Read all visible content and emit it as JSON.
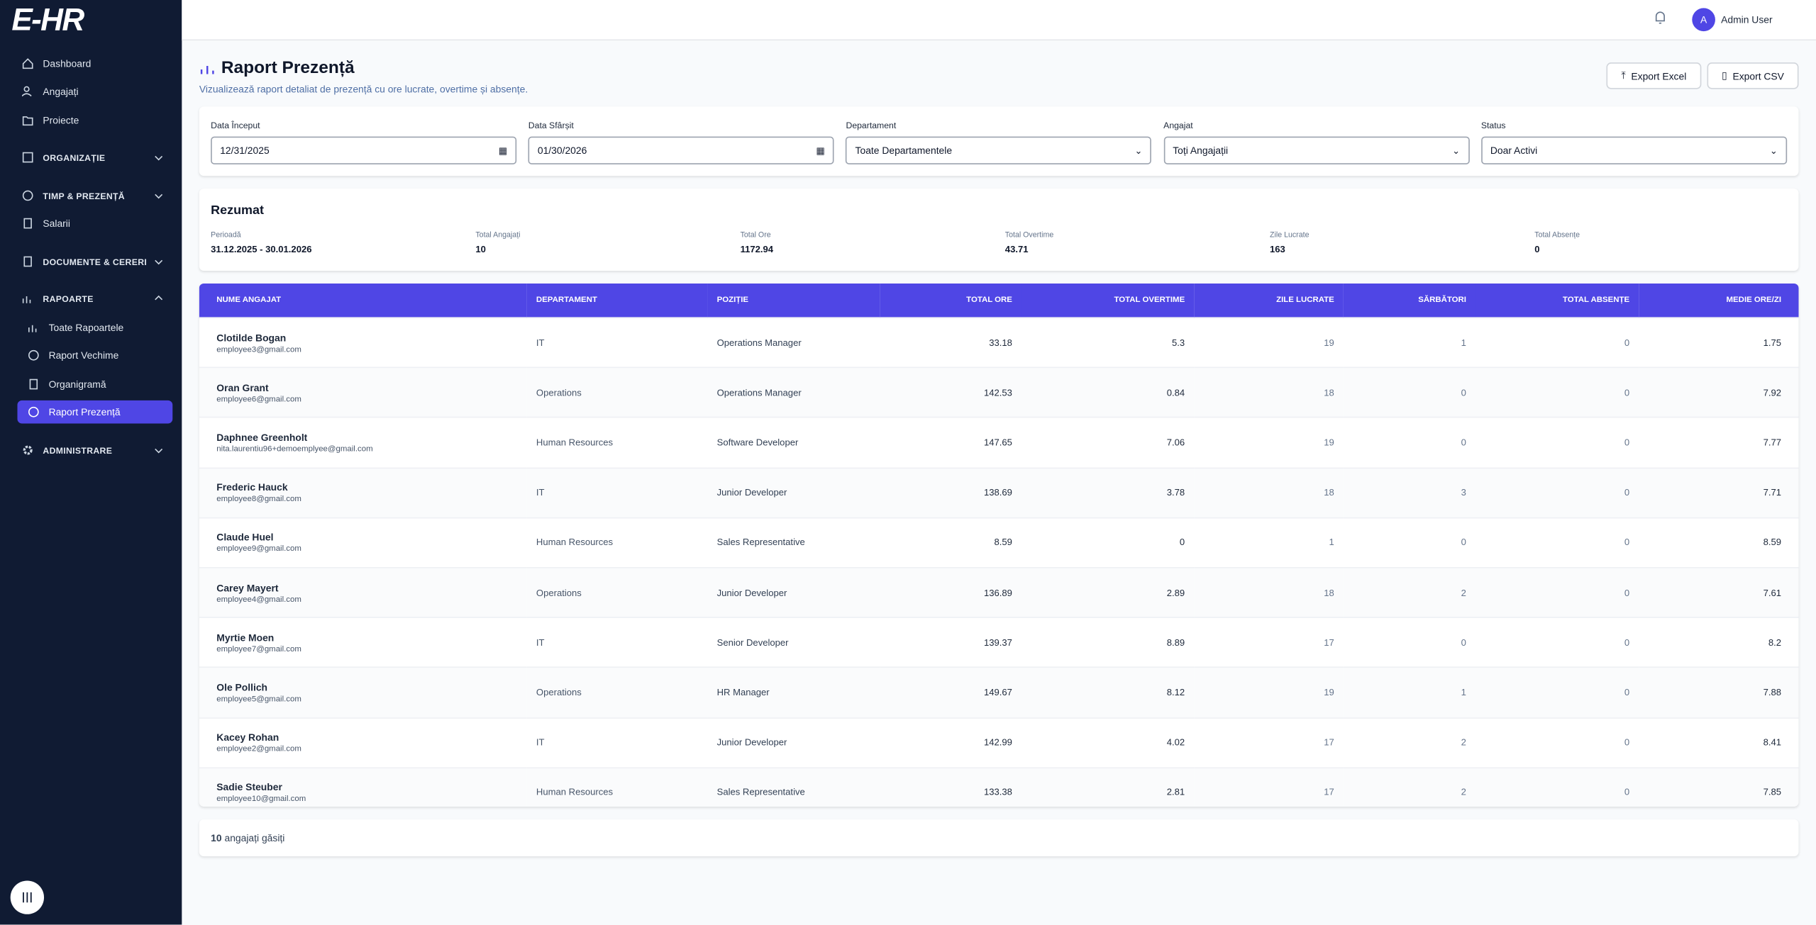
{
  "logo": "E-HR",
  "nav": [
    {
      "label": "Dashboard"
    },
    {
      "label": "Angajați"
    },
    {
      "label": "Proiecte"
    },
    {
      "label": "ORGANIZAȚIE"
    },
    {
      "label": "TIMP & PREZENȚĂ"
    },
    {
      "label": "Salarii"
    },
    {
      "label": "DOCUMENTE & CERERI"
    },
    {
      "label": "RAPOARTE",
      "items": [
        "Toate Rapoartele",
        "Raport Vechime",
        "Organigramă",
        "Raport Prezență"
      ]
    },
    {
      "label": "ADMINISTRARE"
    }
  ],
  "user": {
    "initial": "A",
    "name": "Admin User"
  },
  "header": {
    "title": "Raport Prezență",
    "subtitle": "Vizualizează raport detaliat de prezență cu ore lucrate, overtime și absențe.",
    "buttons": [
      "Export Excel",
      "Export CSV"
    ]
  },
  "filters": [
    {
      "label": "Data Început",
      "value": "12/31/2025"
    },
    {
      "label": "Data Sfârșit",
      "value": "01/30/2026"
    },
    {
      "label": "Departament",
      "value": "Toate Departamentele"
    },
    {
      "label": "Angajat",
      "value": "Toți Angajații"
    },
    {
      "label": "Status",
      "value": "Doar Activi"
    }
  ],
  "summary": {
    "title": "Rezumat",
    "items": [
      {
        "label": "Perioadă",
        "value": "31.12.2025 - 30.01.2026"
      },
      {
        "label": "Total Angajați",
        "value": 10
      },
      {
        "label": "Total Ore",
        "value": 1172.94
      },
      {
        "label": "Total Overtime",
        "value": 43.71
      },
      {
        "label": "Zile Lucrate",
        "value": 163
      },
      {
        "label": "Total Absențe",
        "value": 0
      }
    ]
  },
  "table": {
    "columns": [
      "NUME ANGAJAT",
      "DEPARTAMENT",
      "POZIȚIE",
      "TOTAL ORE",
      "TOTAL OVERTIME",
      "ZILE LUCRATE",
      "SĂRBĂTORI",
      "TOTAL ABSENȚE",
      "MEDIE ORE/ZI"
    ],
    "rows": [
      [
        "Clotilde Bogan",
        "employee3@gmail.com",
        "IT",
        "Operations Manager",
        33.18,
        5.3,
        19,
        1,
        0,
        1.75
      ],
      [
        "Oran Grant",
        "employee6@gmail.com",
        "Operations",
        "Operations Manager",
        142.53,
        0.84,
        18,
        0,
        0,
        7.92
      ],
      [
        "Daphnee Greenholt",
        "nita.laurentiu96+demoemplyee@gmail.com",
        "Human Resources",
        "Software Developer",
        147.65,
        7.06,
        19,
        0,
        0,
        7.77
      ],
      [
        "Frederic Hauck",
        "employee8@gmail.com",
        "IT",
        "Junior Developer",
        138.69,
        3.78,
        18,
        3,
        0,
        7.71
      ],
      [
        "Claude Huel",
        "employee9@gmail.com",
        "Human Resources",
        "Sales Representative",
        8.59,
        0,
        1,
        0,
        0,
        8.59
      ],
      [
        "Carey Mayert",
        "employee4@gmail.com",
        "Operations",
        "Junior Developer",
        136.89,
        2.89,
        18,
        2,
        0,
        7.61
      ],
      [
        "Myrtie Moen",
        "employee7@gmail.com",
        "IT",
        "Senior Developer",
        139.37,
        8.89,
        17,
        0,
        0,
        8.2
      ],
      [
        "Ole Pollich",
        "employee5@gmail.com",
        "Operations",
        "HR Manager",
        149.67,
        8.12,
        19,
        1,
        0,
        7.88
      ],
      [
        "Kacey Rohan",
        "employee2@gmail.com",
        "IT",
        "Junior Developer",
        142.99,
        4.02,
        17,
        2,
        0,
        8.41
      ],
      [
        "Sadie Steuber",
        "employee10@gmail.com",
        "Human Resources",
        "Sales Representative",
        133.38,
        2.81,
        17,
        2,
        0,
        7.85
      ]
    ]
  },
  "footer": {
    "count": 10,
    "text": "angajați găsiți"
  }
}
